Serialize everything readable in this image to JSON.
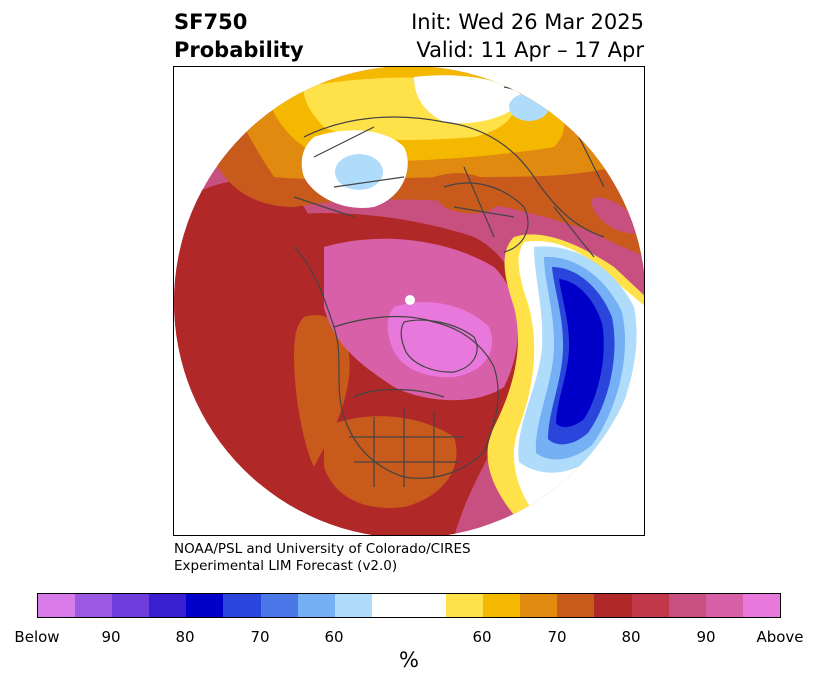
{
  "title": {
    "left_line1": "SF750",
    "left_line2": "Probability",
    "right_line1": "Init: Wed 26 Mar 2025",
    "right_line2": "Valid: 11 Apr – 17 Apr"
  },
  "credit": {
    "line1": "NOAA/PSL and University of Colorado/CIRES",
    "line2": "Experimental LIM Forecast (v2.0)"
  },
  "colorbar": {
    "unit": "%",
    "colors": [
      "#d87ae8",
      "#9b59e3",
      "#6f3ddb",
      "#3a1fd0",
      "#0000c8",
      "#2a45dc",
      "#4a78e8",
      "#76b0f4",
      "#b0dcfc",
      "#ffffff",
      "#ffffff",
      "#ffe24a",
      "#f5b800",
      "#e08a10",
      "#c85a1c",
      "#b02828",
      "#c0384a",
      "#c85080",
      "#d860a8",
      "#e878dc"
    ],
    "tick_labels": [
      "Below",
      "90",
      "80",
      "70",
      "60",
      "60",
      "70",
      "80",
      "90",
      "Above"
    ]
  },
  "map": {
    "colors": {
      "far_above": "#c85080",
      "above_80": "#b02828",
      "above_70": "#c85a1c",
      "above_65": "#e08a10",
      "above_60": "#f5b800",
      "above_55": "#ffe24a",
      "max_above": "#e878dc",
      "pink": "#d860a8",
      "below_55": "#b0dcfc",
      "below_60": "#76b0f4",
      "below_70": "#2a45dc",
      "below_80": "#0000c8",
      "coast": "#444444"
    }
  }
}
